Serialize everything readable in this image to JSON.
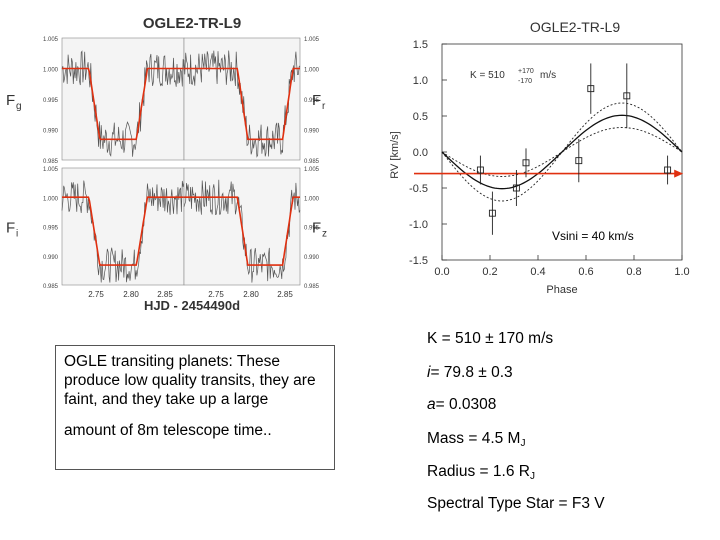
{
  "colors": {
    "fit_red": "#e03010",
    "data_gray": "#555555",
    "panel_bg": "#f4f4f4"
  },
  "chart_data": [
    {
      "type": "line",
      "title": "OGLE2-TR-L9",
      "description_panels": "Four transit light-curve panels sharing x axis",
      "xlabel": "HJD - 2454490d",
      "x_ticks": [
        "2.75",
        "2.80",
        "2.85",
        "2.75",
        "2.80",
        "2.85"
      ],
      "y_ticks": [
        "1.005",
        "1.000",
        "0.995",
        "0.990",
        "0.985"
      ],
      "ylim": [
        0.985,
        1.005
      ],
      "panels": [
        {
          "label_main": "F",
          "label_sub": "g",
          "side": "left-top"
        },
        {
          "label_main": "F",
          "label_sub": "r",
          "side": "right-top"
        },
        {
          "label_main": "F",
          "label_sub": "i",
          "side": "left-bottom"
        },
        {
          "label_main": "F",
          "label_sub": "z",
          "side": "right-bottom"
        }
      ],
      "transit_depth": 0.0116
    },
    {
      "type": "scatter",
      "title": "OGLE2-TR-L9",
      "xlabel": "Phase",
      "ylabel": "RV [km/s]",
      "xlim": [
        0.0,
        1.0
      ],
      "ylim": [
        -1.5,
        1.5
      ],
      "x_ticks": [
        "0.0",
        "0.2",
        "0.4",
        "0.6",
        "0.8",
        "1.0"
      ],
      "x_tick_values": [
        0.0,
        0.2,
        0.4,
        0.6,
        0.8,
        1.0
      ],
      "y_ticks": [
        "1.5",
        "1.0",
        "0.5",
        "0.0",
        "-0.5",
        "-1.0",
        "-1.5"
      ],
      "y_tick_values": [
        1.5,
        1.0,
        0.5,
        0.0,
        -0.5,
        -1.0,
        -1.5
      ],
      "points": [
        {
          "x": 0.16,
          "y": -0.25,
          "err": 0.2
        },
        {
          "x": 0.21,
          "y": -0.85,
          "err": 0.3
        },
        {
          "x": 0.31,
          "y": -0.5,
          "err": 0.25
        },
        {
          "x": 0.35,
          "y": -0.15,
          "err": 0.2
        },
        {
          "x": 0.57,
          "y": -0.12,
          "err": 0.3
        },
        {
          "x": 0.62,
          "y": 0.88,
          "err": 0.35
        },
        {
          "x": 0.77,
          "y": 0.78,
          "err": 0.45
        },
        {
          "x": 0.94,
          "y": -0.25,
          "err": 0.2
        }
      ],
      "fit_amplitude": 0.51,
      "fit_offset": 0.0,
      "band_amplitudes": [
        0.34,
        0.68
      ],
      "annotation_k": "K = 510",
      "annotation_k_plus": "+170",
      "annotation_k_minus": "-170",
      "annotation_k_unit": "m/s",
      "annotation_vsini": "Vsini = 40 km/s",
      "arrow_y": -0.3
    }
  ],
  "notes": {
    "text": "OGLE transiting planets: These produce low quality transits, they are faint, and they take up a large",
    "text2": "amount of 8m telescope time.."
  },
  "params": {
    "k": "K = 510  ± 170 m/s",
    "i": "i= 79.8 ±  0.3",
    "a": "a= 0.0308",
    "mass": "Mass = 4.5  M",
    "mass_sub": "J",
    "radius": "Radius = 1.6 R",
    "radius_sub": "J",
    "spectral": "Spectral Type Star = F3 V"
  }
}
